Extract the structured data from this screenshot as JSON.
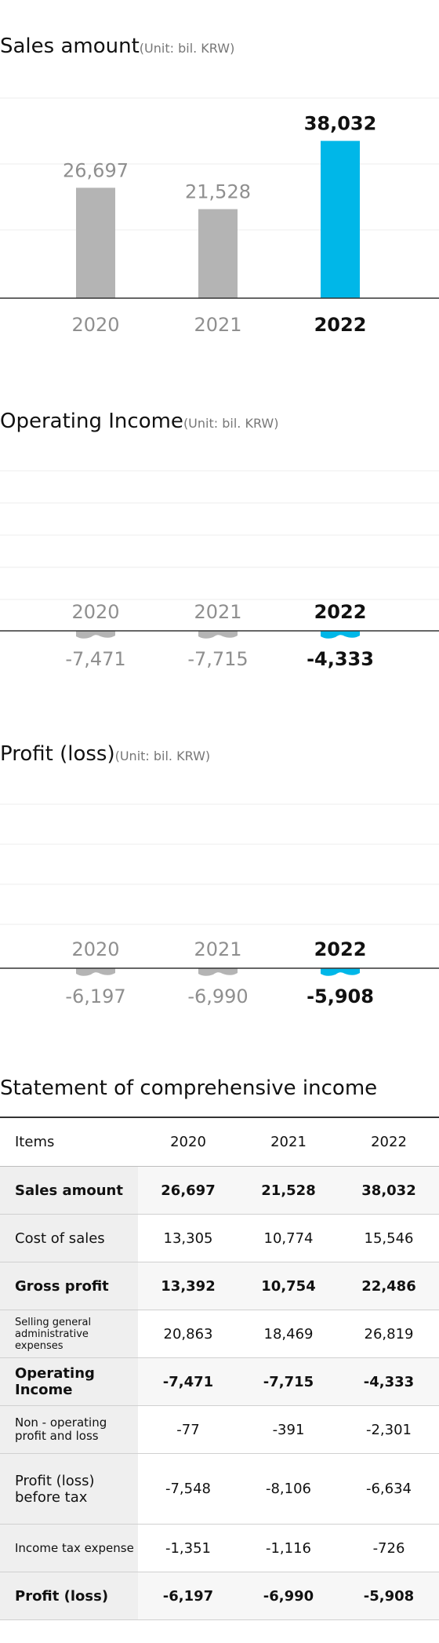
{
  "colors": {
    "highlight": "#00b7e8",
    "muted": "#b4b4b4",
    "baseline": "#333333",
    "grid": "#ececec"
  },
  "sections": {
    "sales": {
      "title": "Sales amount",
      "unit": "(Unit: bil. KRW)"
    },
    "operating": {
      "title": "Operating Income",
      "unit": "(Unit: bil. KRW)"
    },
    "profit": {
      "title": "Profit (loss)",
      "unit": "(Unit: bil. KRW)"
    },
    "statement": {
      "title": "Statement of comprehensive income"
    }
  },
  "chart_data": [
    {
      "id": "sales",
      "type": "bar",
      "categories": [
        "2020",
        "2021",
        "2022"
      ],
      "values": [
        26697,
        21528,
        38032
      ],
      "value_labels": [
        "26,697",
        "21,528",
        "38,032"
      ],
      "title": "Sales amount",
      "unit": "(Unit: bil. KRW)",
      "ylim": [
        0,
        45000
      ],
      "grid": true,
      "highlight_index": 2
    },
    {
      "id": "operating",
      "type": "bar",
      "categories": [
        "2020",
        "2021",
        "2022"
      ],
      "values": [
        -7471,
        -7715,
        -4333
      ],
      "value_labels": [
        "-7,471",
        "-7,715",
        "-4,333"
      ],
      "title": "Operating Income",
      "unit": "(Unit: bil. KRW)",
      "axis_break": true,
      "grid": true,
      "highlight_index": 2
    },
    {
      "id": "profit",
      "type": "bar",
      "categories": [
        "2020",
        "2021",
        "2022"
      ],
      "values": [
        -6197,
        -6990,
        -5908
      ],
      "value_labels": [
        "-6,197",
        "-6,990",
        "-5,908"
      ],
      "title": "Profit (loss)",
      "unit": "(Unit: bil. KRW)",
      "axis_break": true,
      "grid": true,
      "highlight_index": 2
    },
    {
      "id": "statement",
      "type": "table",
      "columns": [
        "Items",
        "2020",
        "2021",
        "2022"
      ],
      "rows": [
        {
          "item": "Sales amount",
          "values": [
            "26,697",
            "21,528",
            "38,032"
          ],
          "bold": true
        },
        {
          "item": "Cost of sales",
          "values": [
            "13,305",
            "10,774",
            "15,546"
          ],
          "bold": false
        },
        {
          "item": "Gross profit",
          "values": [
            "13,392",
            "10,754",
            "22,486"
          ],
          "bold": true
        },
        {
          "item": "Selling general administrative expenses",
          "values": [
            "20,863",
            "18,469",
            "26,819"
          ],
          "bold": false
        },
        {
          "item": "Operating Income",
          "values": [
            "-7,471",
            "-7,715",
            "-4,333"
          ],
          "bold": true
        },
        {
          "item": "Non - operating profit and loss",
          "values": [
            "-77",
            "-391",
            "-2,301"
          ],
          "bold": false
        },
        {
          "item": "Profit (loss) before tax",
          "values": [
            "-7,548",
            "-8,106",
            "-6,634"
          ],
          "bold": false
        },
        {
          "item": "Income tax expense",
          "values": [
            "-1,351",
            "-1,116",
            "-726"
          ],
          "bold": false
        },
        {
          "item": "Profit (loss)",
          "values": [
            "-6,197",
            "-6,990",
            "-5,908"
          ],
          "bold": true
        }
      ]
    }
  ]
}
